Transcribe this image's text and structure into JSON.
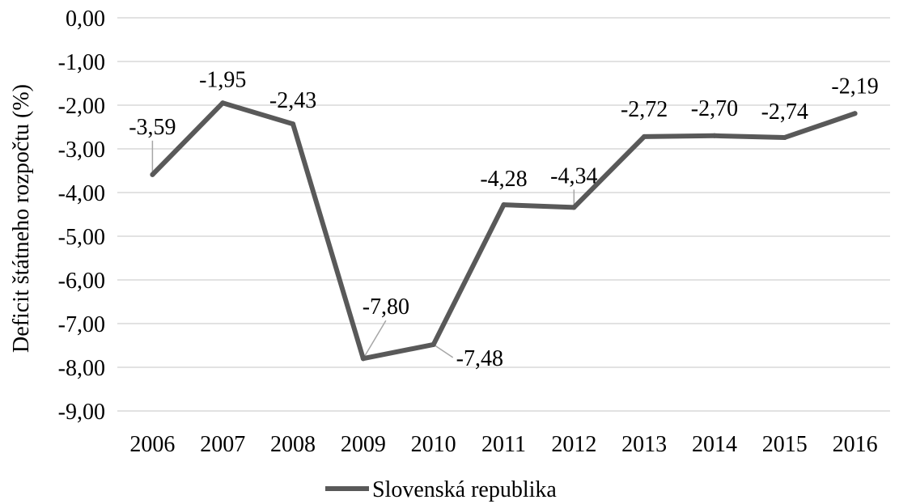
{
  "chart_data": {
    "type": "line",
    "title": "",
    "xlabel": "",
    "ylabel": "Deficit štátneho rozpočtu (%)",
    "categories": [
      "2006",
      "2007",
      "2008",
      "2009",
      "2010",
      "2011",
      "2012",
      "2013",
      "2014",
      "2015",
      "2016"
    ],
    "ylim": [
      -9,
      0
    ],
    "yticks": [
      0,
      -1,
      -2,
      -3,
      -4,
      -5,
      -6,
      -7,
      -8,
      -9
    ],
    "ytick_labels": [
      "0,00",
      "-1,00",
      "-2,00",
      "-3,00",
      "-4,00",
      "-5,00",
      "-6,00",
      "-7,00",
      "-8,00",
      "-9,00"
    ],
    "grid": true,
    "legend_position": "bottom",
    "series": [
      {
        "name": "Slovenská republika",
        "color": "#595959",
        "values": [
          -3.59,
          -1.95,
          -2.43,
          -7.8,
          -7.48,
          -4.28,
          -4.34,
          -2.72,
          -2.7,
          -2.74,
          -2.19
        ],
        "data_labels": [
          "-3,59",
          "-1,95",
          "-2,43",
          "-7,80",
          "-7,48",
          "-4,28",
          "-4,34",
          "-2,72",
          "-2,70",
          "-2,74",
          "-2,19"
        ]
      }
    ]
  }
}
